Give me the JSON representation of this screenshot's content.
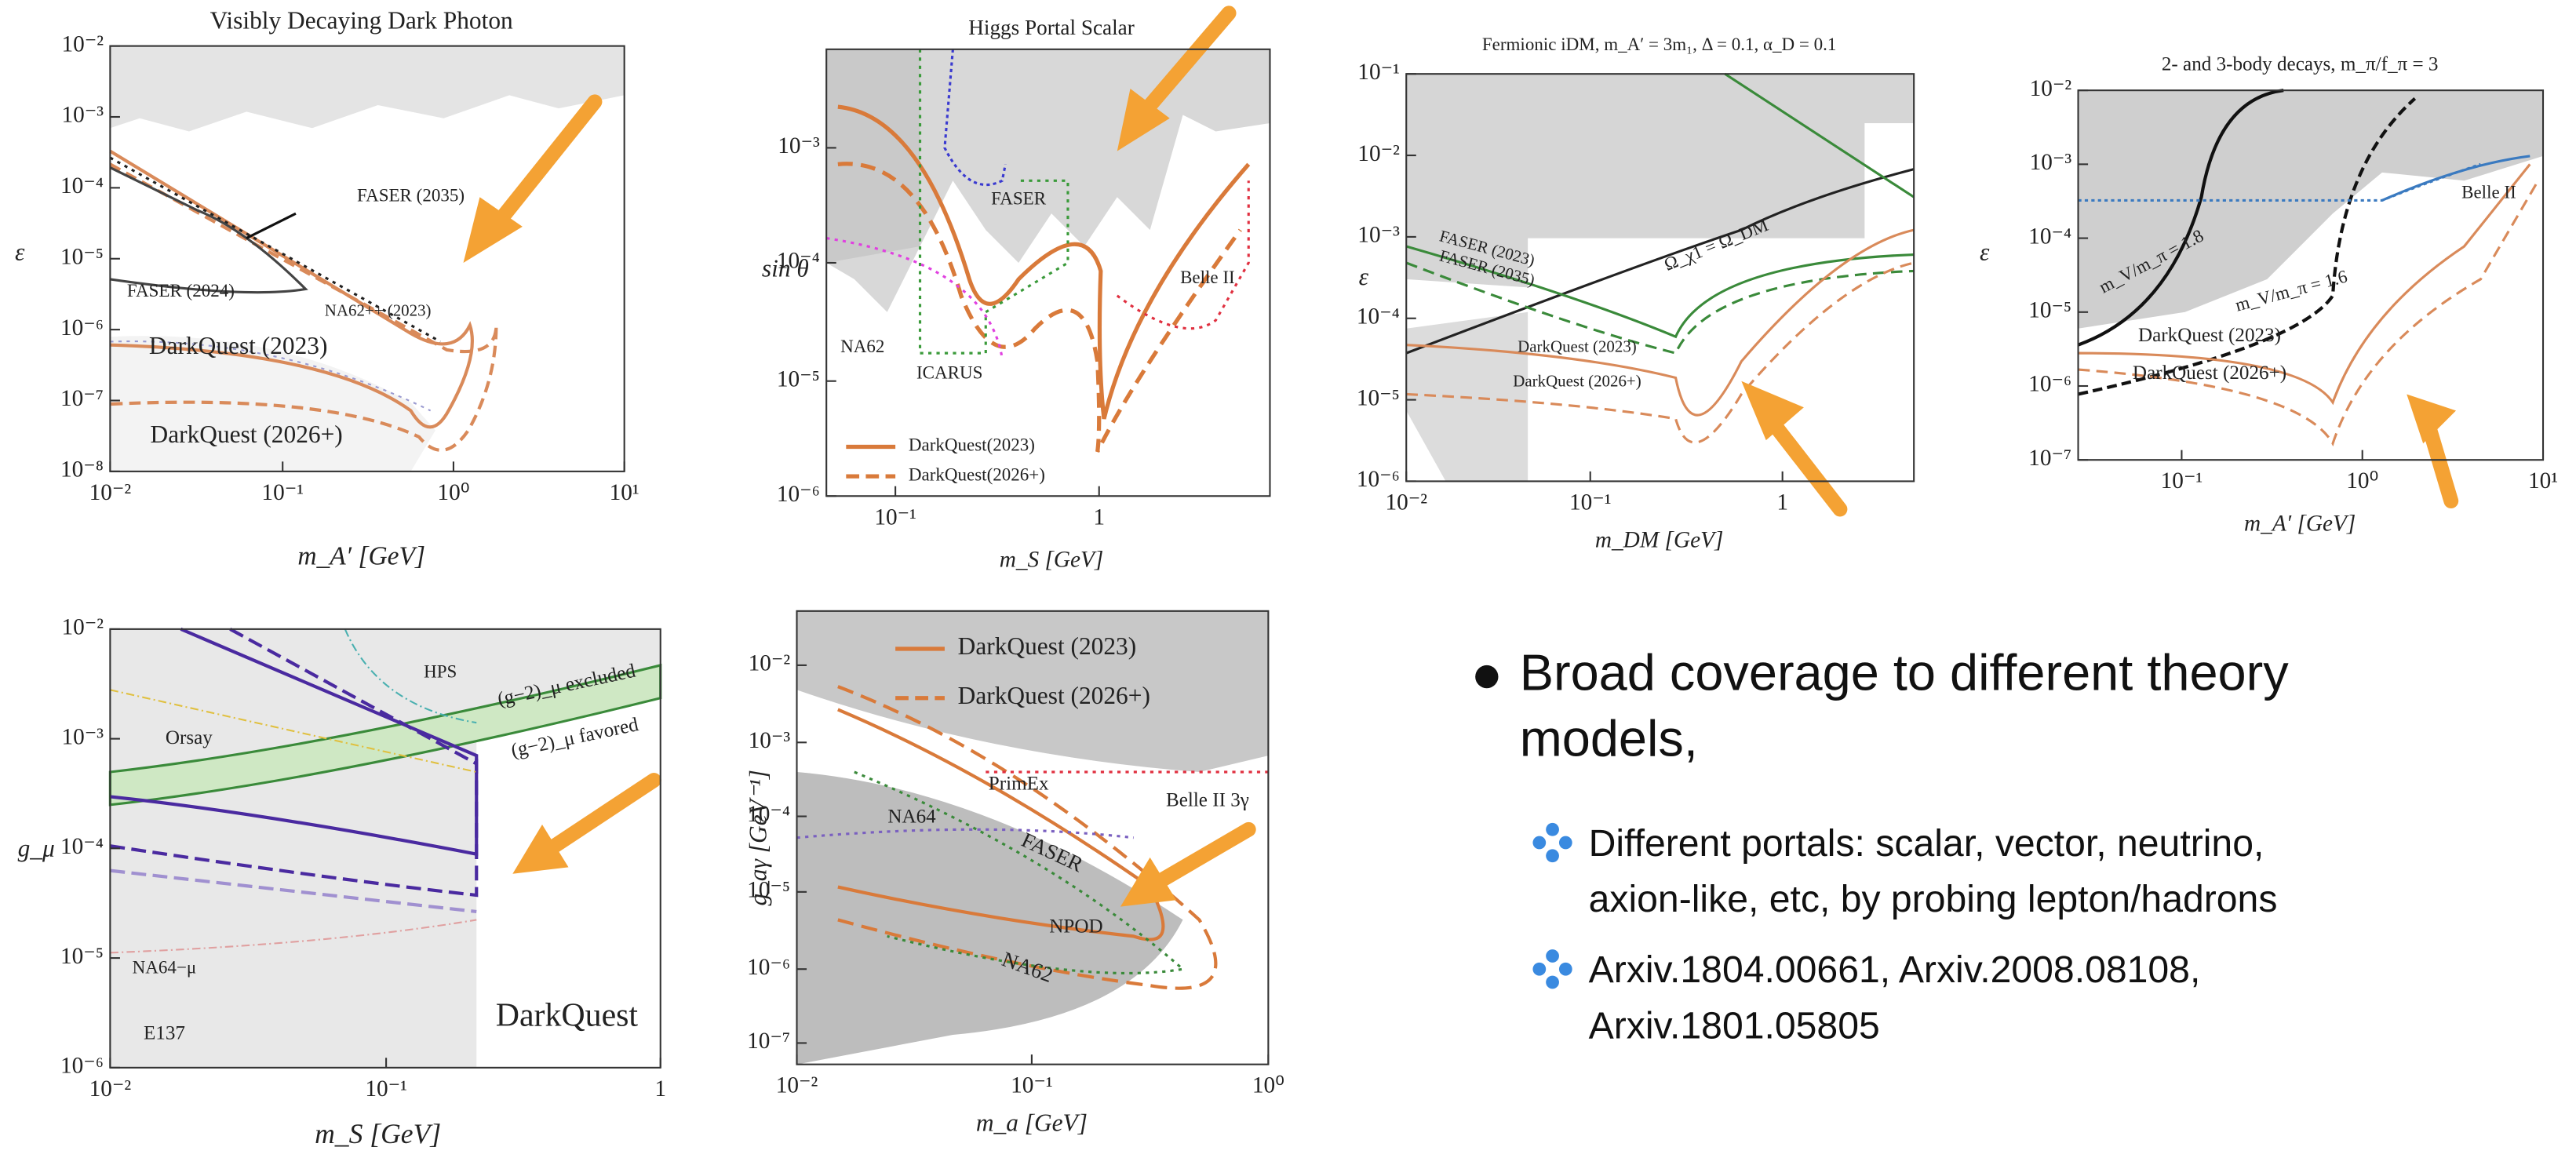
{
  "panels": [
    {
      "title": "Visibly Decaying Dark Photon",
      "x_label": "m_A′ [GeV]",
      "y_label": "ε",
      "x_ticks": [
        "10⁻²",
        "10⁻¹",
        "10⁰",
        "10¹"
      ],
      "y_ticks": [
        "10⁻²",
        "10⁻³",
        "10⁻⁴",
        "10⁻⁵",
        "10⁻⁶",
        "10⁻⁷",
        "10⁻⁸"
      ],
      "labels": [
        "FASER (2035)",
        "FASER (2024)",
        "NA62++ (2023)",
        "DarkQuest (2023)",
        "DarkQuest (2026+)"
      ]
    },
    {
      "title": "Higgs Portal Scalar",
      "x_label": "m_S [GeV]",
      "y_label": "sin θ",
      "x_ticks": [
        "10⁻¹",
        "1"
      ],
      "y_ticks": [
        "10⁻³",
        "10⁻⁴",
        "10⁻⁵",
        "10⁻⁶"
      ],
      "labels": [
        "FASER",
        "NA62",
        "ICARUS",
        "Belle II"
      ],
      "legend": [
        "DarkQuest(2023)",
        "DarkQuest(2026+)"
      ]
    },
    {
      "title": "Fermionic iDM, m_A′ = 3m₁, Δ = 0.1, α_D = 0.1",
      "x_label": "m_DM [GeV]",
      "y_label": "ε",
      "x_ticks": [
        "10⁻²",
        "10⁻¹",
        "1"
      ],
      "y_ticks": [
        "10⁻¹",
        "10⁻²",
        "10⁻³",
        "10⁻⁴",
        "10⁻⁵",
        "10⁻⁶"
      ],
      "labels": [
        "Ω_χ1 = Ω_DM",
        "FASER (2023)",
        "FASER (2035)",
        "DarkQuest (2023)",
        "DarkQuest (2026+)"
      ]
    },
    {
      "title": "2- and 3-body decays, m_π/f_π = 3",
      "x_label": "m_A′ [GeV]",
      "y_label": "ε",
      "x_ticks": [
        "10⁻¹",
        "10⁰",
        "10¹"
      ],
      "y_ticks": [
        "10⁻²",
        "10⁻³",
        "10⁻⁴",
        "10⁻⁵",
        "10⁻⁶",
        "10⁻⁷"
      ],
      "labels": [
        "Belle II",
        "m_V/m_π = 1.8",
        "m_V/m_π = 1.6",
        "DarkQuest (2023)",
        "DarkQuest (2026+)"
      ]
    },
    {
      "x_label": "m_S [GeV]",
      "y_label": "g_μ",
      "x_ticks": [
        "10⁻²",
        "10⁻¹",
        "1"
      ],
      "y_ticks": [
        "10⁻²",
        "10⁻³",
        "10⁻⁴",
        "10⁻⁵",
        "10⁻⁶"
      ],
      "labels": [
        "HPS",
        "(g−2)_μ excluded",
        "(g−2)_μ favored",
        "Orsay",
        "NA64−μ",
        "E137",
        "DarkQuest"
      ]
    },
    {
      "x_label": "m_a [GeV]",
      "y_label": "g_aγ [GeV⁻¹]",
      "x_ticks": [
        "10⁻²",
        "10⁻¹",
        "10⁰"
      ],
      "y_ticks": [
        "10⁻²",
        "10⁻³",
        "10⁻⁴",
        "10⁻⁵",
        "10⁻⁶",
        "10⁻⁷"
      ],
      "labels": [
        "PrimEx",
        "Belle II 3γ",
        "NA64",
        "FASER",
        "NPOD",
        "NA62"
      ],
      "legend": [
        "DarkQuest (2023)",
        "DarkQuest (2026+)"
      ]
    }
  ],
  "bullets": {
    "main": {
      "lines": [
        "Broad coverage to different theory",
        "models,"
      ]
    },
    "sub": [
      {
        "lines": [
          "Different portals: scalar, vector, neutrino,",
          "axion-like, etc, by probing lepton/hadrons"
        ]
      },
      {
        "lines": [
          "Arxiv.1804.00661, Arxiv.2008.08108,",
          "Arxiv.1801.05805"
        ]
      }
    ]
  }
}
